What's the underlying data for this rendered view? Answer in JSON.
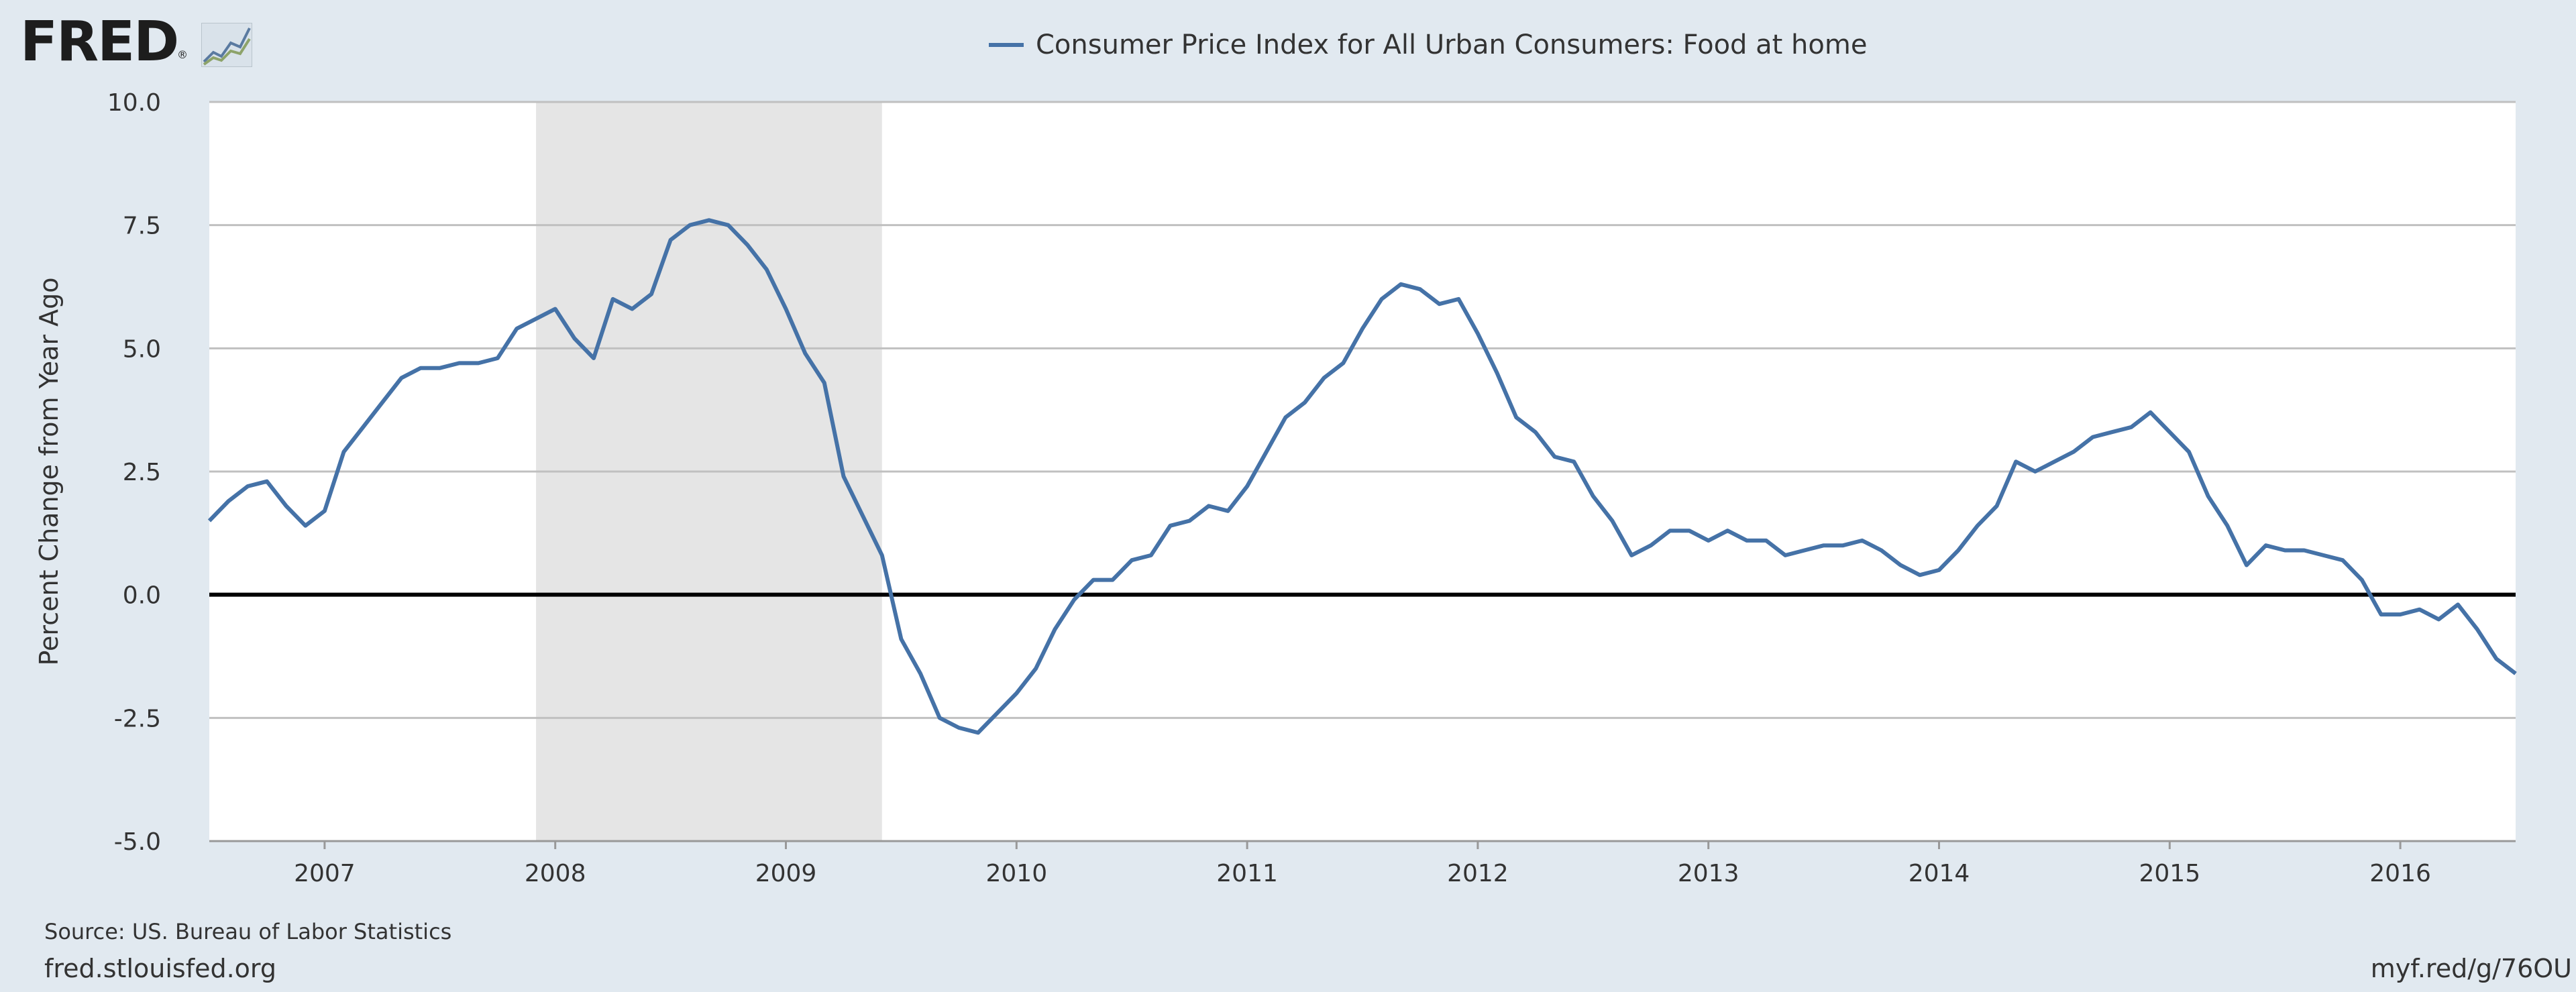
{
  "branding": {
    "logo_text": "FRED",
    "logo_registered": "®"
  },
  "legend": {
    "series_label": "Consumer Price Index for All Urban Consumers: Food at home",
    "series_color": "#4572a7"
  },
  "footer": {
    "source": "Source: US. Bureau of Labor Statistics",
    "site": "fred.stlouisfed.org",
    "short_link": "myf.red/g/76OU"
  },
  "colors": {
    "background": "#e1e9f0",
    "plot_background": "#ffffff",
    "recession_shade": "#e5e5e5",
    "grid": "#c0c0c0",
    "zero_line": "#000000"
  },
  "chart_data": {
    "type": "line",
    "title": "",
    "xlabel": "",
    "ylabel": "Percent Change from Year Ago",
    "ylim": [
      -5.0,
      10.0
    ],
    "xlim": [
      "2006-07",
      "2016-07"
    ],
    "y_ticks": [
      "-5.0",
      "-2.5",
      "0.0",
      "2.5",
      "5.0",
      "7.5",
      "10.0"
    ],
    "x_ticks": [
      "2007",
      "2008",
      "2009",
      "2010",
      "2011",
      "2012",
      "2013",
      "2014",
      "2015",
      "2016"
    ],
    "grid": true,
    "recession": {
      "start": "2007-12",
      "end": "2009-06"
    },
    "series": [
      {
        "name": "Consumer Price Index for All Urban Consumers: Food at home",
        "x": [
          "2006-07",
          "2006-08",
          "2006-09",
          "2006-10",
          "2006-11",
          "2006-12",
          "2007-01",
          "2007-02",
          "2007-03",
          "2007-04",
          "2007-05",
          "2007-06",
          "2007-07",
          "2007-08",
          "2007-09",
          "2007-10",
          "2007-11",
          "2007-12",
          "2008-01",
          "2008-02",
          "2008-03",
          "2008-04",
          "2008-05",
          "2008-06",
          "2008-07",
          "2008-08",
          "2008-09",
          "2008-10",
          "2008-11",
          "2008-12",
          "2009-01",
          "2009-02",
          "2009-03",
          "2009-04",
          "2009-05",
          "2009-06",
          "2009-07",
          "2009-08",
          "2009-09",
          "2009-10",
          "2009-11",
          "2009-12",
          "2010-01",
          "2010-02",
          "2010-03",
          "2010-04",
          "2010-05",
          "2010-06",
          "2010-07",
          "2010-08",
          "2010-09",
          "2010-10",
          "2010-11",
          "2010-12",
          "2011-01",
          "2011-02",
          "2011-03",
          "2011-04",
          "2011-05",
          "2011-06",
          "2011-07",
          "2011-08",
          "2011-09",
          "2011-10",
          "2011-11",
          "2011-12",
          "2012-01",
          "2012-02",
          "2012-03",
          "2012-04",
          "2012-05",
          "2012-06",
          "2012-07",
          "2012-08",
          "2012-09",
          "2012-10",
          "2012-11",
          "2012-12",
          "2013-01",
          "2013-02",
          "2013-03",
          "2013-04",
          "2013-05",
          "2013-06",
          "2013-07",
          "2013-08",
          "2013-09",
          "2013-10",
          "2013-11",
          "2013-12",
          "2014-01",
          "2014-02",
          "2014-03",
          "2014-04",
          "2014-05",
          "2014-06",
          "2014-07",
          "2014-08",
          "2014-09",
          "2014-10",
          "2014-11",
          "2014-12",
          "2015-01",
          "2015-02",
          "2015-03",
          "2015-04",
          "2015-05",
          "2015-06",
          "2015-07",
          "2015-08",
          "2015-09",
          "2015-10",
          "2015-11",
          "2015-12",
          "2016-01",
          "2016-02",
          "2016-03",
          "2016-04",
          "2016-05",
          "2016-06",
          "2016-07"
        ],
        "values": [
          1.5,
          1.9,
          2.2,
          2.3,
          1.8,
          1.4,
          1.7,
          2.9,
          3.4,
          3.9,
          4.4,
          4.6,
          4.6,
          4.7,
          4.7,
          4.8,
          5.4,
          5.6,
          5.8,
          5.2,
          4.8,
          6.0,
          5.8,
          6.1,
          7.2,
          7.5,
          7.6,
          7.5,
          7.1,
          6.6,
          5.8,
          4.9,
          4.3,
          2.4,
          1.6,
          0.8,
          -0.9,
          -1.6,
          -2.5,
          -2.7,
          -2.8,
          -2.4,
          -2.0,
          -1.5,
          -0.7,
          -0.1,
          0.3,
          0.3,
          0.7,
          0.8,
          1.4,
          1.5,
          1.8,
          1.7,
          2.2,
          2.9,
          3.6,
          3.9,
          4.4,
          4.7,
          5.4,
          6.0,
          6.3,
          6.2,
          5.9,
          6.0,
          5.3,
          4.5,
          3.6,
          3.3,
          2.8,
          2.7,
          2.0,
          1.5,
          0.8,
          1.0,
          1.3,
          1.3,
          1.1,
          1.3,
          1.1,
          1.1,
          0.8,
          0.9,
          1.0,
          1.0,
          1.1,
          0.9,
          0.6,
          0.4,
          0.5,
          0.9,
          1.4,
          1.8,
          2.7,
          2.5,
          2.7,
          2.9,
          3.2,
          3.3,
          3.4,
          3.7,
          3.3,
          2.9,
          2.0,
          1.4,
          0.6,
          1.0,
          0.9,
          0.9,
          0.8,
          0.7,
          0.3,
          -0.4,
          -0.4,
          -0.3,
          -0.5,
          -0.2,
          -0.7,
          -1.3,
          -1.6
        ]
      }
    ]
  }
}
